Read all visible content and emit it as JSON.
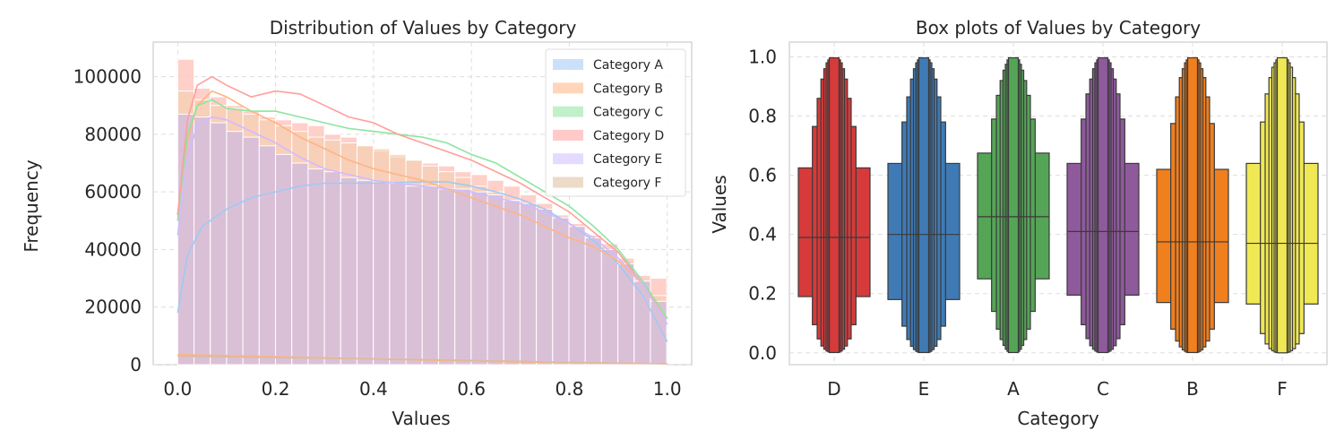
{
  "chart_data": [
    {
      "type": "histogram",
      "title": "Distribution of Values by Category",
      "xlabel": "Values",
      "ylabel": "Frequency",
      "xlim": [
        -0.05,
        1.05
      ],
      "ylim": [
        0,
        112000
      ],
      "xticks": [
        "0.0",
        "0.2",
        "0.4",
        "0.6",
        "0.8",
        "1.0"
      ],
      "yticks": [
        "0",
        "20000",
        "40000",
        "60000",
        "80000",
        "100000"
      ],
      "grid": true,
      "legend_position": "top-right",
      "bins": 30,
      "series": [
        {
          "name": "Category A",
          "color": "#a1c9f4",
          "kde": [
            [
              0,
              18000
            ],
            [
              0.02,
              38000
            ],
            [
              0.05,
              48000
            ],
            [
              0.1,
              54000
            ],
            [
              0.15,
              58000
            ],
            [
              0.2,
              60000
            ],
            [
              0.25,
              62000
            ],
            [
              0.3,
              63000
            ],
            [
              0.4,
              63000
            ],
            [
              0.5,
              63500
            ],
            [
              0.55,
              63500
            ],
            [
              0.6,
              62000
            ],
            [
              0.65,
              60000
            ],
            [
              0.7,
              57500
            ],
            [
              0.75,
              54000
            ],
            [
              0.8,
              49000
            ],
            [
              0.85,
              43000
            ],
            [
              0.9,
              35000
            ],
            [
              0.95,
              24000
            ],
            [
              1.0,
              8000
            ]
          ]
        },
        {
          "name": "Category B",
          "color": "#ffb482",
          "kde": [
            [
              0,
              52000
            ],
            [
              0.02,
              78000
            ],
            [
              0.04,
              90000
            ],
            [
              0.07,
              95000
            ],
            [
              0.1,
              93000
            ],
            [
              0.15,
              88000
            ],
            [
              0.2,
              84000
            ],
            [
              0.25,
              79000
            ],
            [
              0.3,
              75000
            ],
            [
              0.35,
              71000
            ],
            [
              0.4,
              68000
            ],
            [
              0.45,
              66000
            ],
            [
              0.5,
              64000
            ],
            [
              0.55,
              61000
            ],
            [
              0.6,
              58000
            ],
            [
              0.65,
              55000
            ],
            [
              0.7,
              52000
            ],
            [
              0.75,
              48000
            ],
            [
              0.8,
              44000
            ],
            [
              0.85,
              41000
            ],
            [
              0.9,
              36000
            ],
            [
              0.95,
              28000
            ],
            [
              1.0,
              16000
            ]
          ],
          "flat_kde": [
            [
              0,
              3500
            ],
            [
              0.2,
              2800
            ],
            [
              0.4,
              2000
            ],
            [
              0.6,
              1200
            ],
            [
              0.8,
              700
            ],
            [
              1.0,
              300
            ]
          ]
        },
        {
          "name": "Category C",
          "color": "#8de5a1",
          "kde": [
            [
              0,
              50000
            ],
            [
              0.02,
              80000
            ],
            [
              0.04,
              90000
            ],
            [
              0.07,
              92000
            ],
            [
              0.1,
              89000
            ],
            [
              0.15,
              88000
            ],
            [
              0.2,
              88000
            ],
            [
              0.25,
              86000
            ],
            [
              0.3,
              84000
            ],
            [
              0.35,
              82000
            ],
            [
              0.4,
              81000
            ],
            [
              0.45,
              80000
            ],
            [
              0.5,
              79000
            ],
            [
              0.55,
              77000
            ],
            [
              0.6,
              73000
            ],
            [
              0.65,
              70000
            ],
            [
              0.7,
              65000
            ],
            [
              0.75,
              60000
            ],
            [
              0.8,
              55000
            ],
            [
              0.85,
              48000
            ],
            [
              0.9,
              40000
            ],
            [
              0.95,
              29000
            ],
            [
              1.0,
              16000
            ]
          ]
        },
        {
          "name": "Category D",
          "color": "#ff9f9b",
          "kde": [
            [
              0,
              52000
            ],
            [
              0.02,
              85000
            ],
            [
              0.04,
              97000
            ],
            [
              0.07,
              100000
            ],
            [
              0.1,
              97000
            ],
            [
              0.15,
              93000
            ],
            [
              0.2,
              95000
            ],
            [
              0.25,
              94000
            ],
            [
              0.3,
              90000
            ],
            [
              0.35,
              86000
            ],
            [
              0.4,
              84000
            ],
            [
              0.45,
              80000
            ],
            [
              0.5,
              77000
            ],
            [
              0.55,
              74000
            ],
            [
              0.6,
              71000
            ],
            [
              0.65,
              67000
            ],
            [
              0.7,
              63000
            ],
            [
              0.75,
              58000
            ],
            [
              0.8,
              53000
            ],
            [
              0.85,
              46000
            ],
            [
              0.9,
              39000
            ],
            [
              0.95,
              28000
            ],
            [
              1.0,
              14000
            ]
          ]
        },
        {
          "name": "Category E",
          "color": "#d0bbff",
          "kde": [
            [
              0,
              45000
            ],
            [
              0.02,
              72000
            ],
            [
              0.04,
              83000
            ],
            [
              0.07,
              86000
            ],
            [
              0.1,
              85000
            ],
            [
              0.15,
              81000
            ],
            [
              0.2,
              77000
            ],
            [
              0.25,
              72000
            ],
            [
              0.3,
              68000
            ],
            [
              0.35,
              66000
            ],
            [
              0.4,
              64000
            ],
            [
              0.45,
              63000
            ],
            [
              0.5,
              62000
            ],
            [
              0.55,
              61000
            ],
            [
              0.6,
              60000
            ],
            [
              0.65,
              58000
            ],
            [
              0.7,
              56000
            ],
            [
              0.75,
              53000
            ],
            [
              0.8,
              49000
            ],
            [
              0.85,
              44000
            ],
            [
              0.9,
              37000
            ],
            [
              0.95,
              28000
            ],
            [
              1.0,
              14000
            ]
          ]
        },
        {
          "name": "Category F",
          "color": "#debb9b",
          "kde": [
            [
              0,
              3000
            ],
            [
              0.2,
              2500
            ],
            [
              0.4,
              2000
            ],
            [
              0.6,
              1500
            ],
            [
              0.8,
              800
            ],
            [
              1.0,
              300
            ]
          ]
        }
      ],
      "bars": {
        "bin_width": 0.0333,
        "back_top": [
          106000,
          96000,
          93000,
          90000,
          88000,
          86000,
          85000,
          84000,
          83000,
          80000,
          79000,
          76000,
          74000,
          72000,
          71000,
          70000,
          69000,
          67000,
          66000,
          64000,
          62000,
          59000,
          56000,
          52000,
          49000,
          45000,
          42000,
          37000,
          31000,
          30000
        ],
        "mid_top": [
          95000,
          92000,
          90000,
          89000,
          87000,
          85000,
          83000,
          81000,
          79000,
          78000,
          77000,
          76000,
          75000,
          73000,
          71000,
          69000,
          67000,
          65000,
          62000,
          60000,
          57000,
          54000,
          51000,
          47000,
          44000,
          41000,
          37000,
          34000,
          29000,
          24000
        ],
        "front_top": [
          87000,
          86000,
          84000,
          81000,
          79000,
          76000,
          73000,
          70000,
          68000,
          67000,
          65000,
          64000,
          63000,
          63000,
          62000,
          62000,
          61000,
          61000,
          60000,
          59000,
          57000,
          56000,
          54000,
          51000,
          48000,
          44000,
          40000,
          35000,
          29000,
          22000
        ]
      }
    },
    {
      "type": "boxenplot",
      "title": "Box plots of Values by Category",
      "xlabel": "Category",
      "ylabel": "Values",
      "ylim": [
        -0.04,
        1.05
      ],
      "yticks": [
        "0.0",
        "0.2",
        "0.4",
        "0.6",
        "0.8",
        "1.0"
      ],
      "grid": true,
      "categories": [
        "D",
        "E",
        "A",
        "C",
        "B",
        "F"
      ],
      "colors": [
        "#d63a3a",
        "#3f7ab5",
        "#55a557",
        "#8f5a9c",
        "#f07f1e",
        "#f0e854"
      ],
      "medians": [
        0.39,
        0.4,
        0.46,
        0.41,
        0.375,
        0.37
      ],
      "boxes": [
        [
          [
            0.19,
            0.625
          ],
          [
            0.095,
            0.765
          ],
          [
            0.047,
            0.86
          ],
          [
            0.023,
            0.925
          ],
          [
            0.012,
            0.96
          ],
          [
            0.006,
            0.98
          ],
          [
            0.003,
            0.99
          ],
          [
            0.001,
            0.997
          ]
        ],
        [
          [
            0.18,
            0.64
          ],
          [
            0.09,
            0.78
          ],
          [
            0.045,
            0.865
          ],
          [
            0.022,
            0.925
          ],
          [
            0.011,
            0.96
          ],
          [
            0.005,
            0.98
          ],
          [
            0.002,
            0.99
          ],
          [
            0.001,
            0.997
          ]
        ],
        [
          [
            0.25,
            0.675
          ],
          [
            0.14,
            0.79
          ],
          [
            0.08,
            0.87
          ],
          [
            0.045,
            0.92
          ],
          [
            0.025,
            0.955
          ],
          [
            0.012,
            0.975
          ],
          [
            0.005,
            0.99
          ],
          [
            0.001,
            0.997
          ]
        ],
        [
          [
            0.195,
            0.64
          ],
          [
            0.095,
            0.79
          ],
          [
            0.048,
            0.875
          ],
          [
            0.024,
            0.925
          ],
          [
            0.012,
            0.96
          ],
          [
            0.006,
            0.98
          ],
          [
            0.003,
            0.99
          ],
          [
            0.001,
            0.997
          ]
        ],
        [
          [
            0.17,
            0.62
          ],
          [
            0.08,
            0.775
          ],
          [
            0.04,
            0.865
          ],
          [
            0.02,
            0.93
          ],
          [
            0.01,
            0.96
          ],
          [
            0.005,
            0.98
          ],
          [
            0.002,
            0.99
          ],
          [
            0.001,
            0.997
          ]
        ],
        [
          [
            0.165,
            0.64
          ],
          [
            0.065,
            0.78
          ],
          [
            0.03,
            0.875
          ],
          [
            0.014,
            0.93
          ],
          [
            0.007,
            0.965
          ],
          [
            0.003,
            0.98
          ],
          [
            0.001,
            0.99
          ],
          [
            0.0,
            0.997
          ]
        ]
      ]
    }
  ]
}
